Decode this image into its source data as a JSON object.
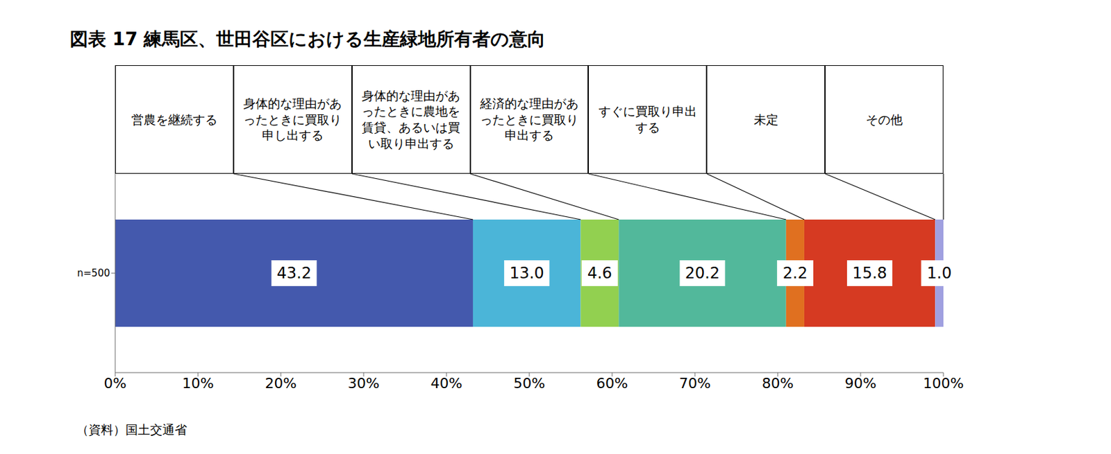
{
  "chart_data": {
    "type": "bar",
    "title": "図表 17 練馬区、世田谷区における生産緑地所有者の意向",
    "source": "（資料）国土交通省",
    "orientation": "horizontal",
    "stacked": true,
    "data_labels": true,
    "legend": "top",
    "categories": [
      "n=500"
    ],
    "series": [
      {
        "name": "営農を継続する",
        "color": "#4459ad",
        "values": [
          43.2
        ]
      },
      {
        "name": "身体的な理由があったときに買取り申し出する",
        "color": "#4bb5d8",
        "values": [
          13.0
        ],
        "value_labels": [
          "13.0"
        ]
      },
      {
        "name": "身体的な理由があったときに農地を賃貸、あるいは買い取り申出する",
        "color": "#92d050",
        "values": [
          4.6
        ]
      },
      {
        "name": "経済的な理由があったときに買取り申出する",
        "color": "#52b89b",
        "values": [
          20.2
        ]
      },
      {
        "name": "すぐに買取り申出する",
        "color": "#e07020",
        "values": [
          2.2
        ]
      },
      {
        "name": "未定",
        "color": "#d63a22",
        "values": [
          15.8
        ]
      },
      {
        "name": "その他",
        "color": "#a0a0e0",
        "values": [
          1.0
        ],
        "value_labels": [
          "1.0"
        ]
      }
    ],
    "xlim": [
      0,
      100
    ],
    "xticks": [
      {
        "value": 0,
        "label": "0%"
      },
      {
        "value": 10,
        "label": "10%"
      },
      {
        "value": 20,
        "label": "20%"
      },
      {
        "value": 30,
        "label": "30%"
      },
      {
        "value": 40,
        "label": "40%"
      },
      {
        "value": 50,
        "label": "50%"
      },
      {
        "value": 60,
        "label": "60%"
      },
      {
        "value": 70,
        "label": "70%"
      },
      {
        "value": 80,
        "label": "80%"
      },
      {
        "value": 90,
        "label": "90%"
      },
      {
        "value": 100,
        "label": "100%"
      }
    ]
  }
}
